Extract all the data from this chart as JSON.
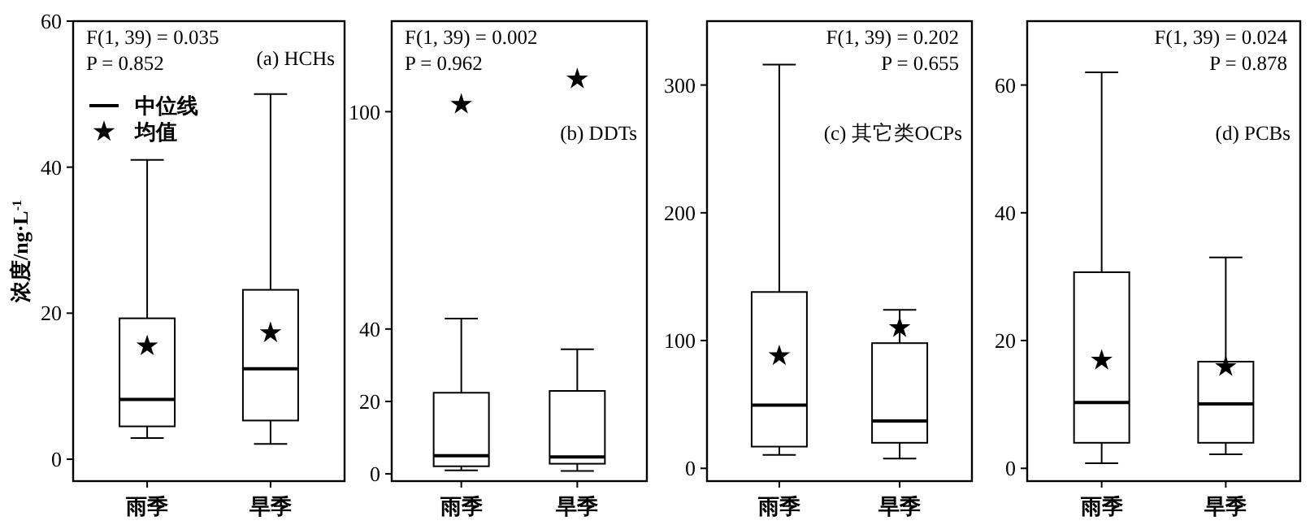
{
  "chart_data": [
    {
      "type": "box",
      "ylabel": "浓度/ng·L$^{-1}$",
      "categories": [
        "雨季",
        "旱季"
      ],
      "ylim": [
        -3,
        60
      ],
      "yticks": [
        0,
        20,
        40,
        60
      ],
      "legend": "top left",
      "annotations": [
        "F(1, 39) = 0.035",
        "P = 0.852",
        "(a) HCHs"
      ],
      "series": [
        {
          "name": "中位线",
          "color": "#000000",
          "boxes": [
            {
              "low": 2.9,
              "q1": 4.5,
              "median": 8.2,
              "q3": 19.3,
              "high": 41
            },
            {
              "low": 2.1,
              "q1": 5.3,
              "median": 12.4,
              "q3": 23.2,
              "high": 50
            }
          ]
        },
        {
          "name": "均值",
          "type": "scatter",
          "marker": "star",
          "color": "#000000",
          "x": [
            "雨季",
            "旱季"
          ],
          "values": [
            15.5,
            17.3
          ]
        }
      ]
    },
    {
      "type": "box",
      "categories": [
        "雨季",
        "旱季"
      ],
      "ylim": [
        -2,
        125
      ],
      "yticks": [
        0,
        20,
        40,
        100
      ],
      "legend": false,
      "annotations": [
        "F(1, 39) = 0.002",
        "P = 0.962",
        "(b) DDTs"
      ],
      "series": [
        {
          "color": "#000000",
          "boxes": [
            {
              "low": 1.0,
              "q1": 2.1,
              "median": 5.0,
              "q3": 22.4,
              "high": 42.9
            },
            {
              "low": 0.8,
              "q1": 2.8,
              "median": 4.7,
              "q3": 22.9,
              "high": 34.4
            }
          ]
        },
        {
          "type": "scatter",
          "marker": "star",
          "color": "#000000",
          "x": [
            "雨季",
            "旱季"
          ],
          "values": [
            102,
            109
          ]
        }
      ]
    },
    {
      "type": "box",
      "categories": [
        "雨季",
        "旱季"
      ],
      "ylim": [
        -10,
        350
      ],
      "yticks": [
        0,
        100,
        200,
        300
      ],
      "legend": false,
      "annotations": [
        "F(1, 39) = 0.202",
        "P = 0.655",
        "(c) 其它类OCPs"
      ],
      "series": [
        {
          "color": "#000000",
          "boxes": [
            {
              "low": 10.5,
              "q1": 17,
              "median": 49.5,
              "q3": 138,
              "high": 316
            },
            {
              "low": 7.6,
              "q1": 20,
              "median": 37,
              "q3": 98,
              "high": 124
            }
          ]
        },
        {
          "type": "scatter",
          "marker": "star",
          "color": "#000000",
          "x": [
            "雨季",
            "旱季"
          ],
          "values": [
            88,
            110
          ]
        }
      ]
    },
    {
      "type": "box",
      "categories": [
        "雨季",
        "旱季"
      ],
      "ylim": [
        -2,
        70
      ],
      "yticks": [
        0,
        20,
        40,
        60
      ],
      "legend": false,
      "annotations": [
        "F(1, 39) = 0.024",
        "P = 0.878",
        "(d) PCBs"
      ],
      "series": [
        {
          "color": "#000000",
          "boxes": [
            {
              "low": 0.8,
              "q1": 4,
              "median": 10.3,
              "q3": 30.7,
              "high": 62
            },
            {
              "low": 2.2,
              "q1": 4,
              "median": 10.1,
              "q3": 16.7,
              "high": 33
            }
          ]
        },
        {
          "type": "scatter",
          "marker": "star",
          "color": "#000000",
          "x": [
            "雨季",
            "旱季"
          ],
          "values": [
            16.9,
            15.9
          ]
        }
      ]
    }
  ]
}
